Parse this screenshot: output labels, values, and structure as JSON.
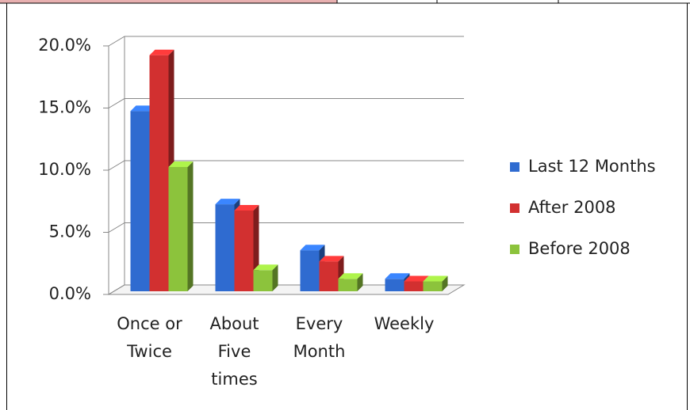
{
  "chart_data": {
    "type": "bar3d",
    "categories": [
      "Once or Twice",
      "About Five times",
      "Every Month",
      "Weekly"
    ],
    "series": [
      {
        "name": "Last 12 Months",
        "color": "#2f6bd0",
        "values": [
          14.5,
          7.0,
          3.3,
          1.0
        ]
      },
      {
        "name": "After 2008",
        "color": "#d23030",
        "values": [
          19.0,
          6.5,
          2.4,
          0.8
        ]
      },
      {
        "name": "Before 2008",
        "color": "#8cc33c",
        "values": [
          10.0,
          1.7,
          1.0,
          0.8
        ]
      }
    ],
    "ylim": [
      0,
      20
    ],
    "yticks": [
      {
        "value": 0,
        "label": "0.0%"
      },
      {
        "value": 5,
        "label": "5.0%"
      },
      {
        "value": 10,
        "label": "10.0%"
      },
      {
        "value": 15,
        "label": "15.0%"
      },
      {
        "value": 20,
        "label": "20.0%"
      }
    ],
    "grid": true,
    "legend": "right"
  }
}
